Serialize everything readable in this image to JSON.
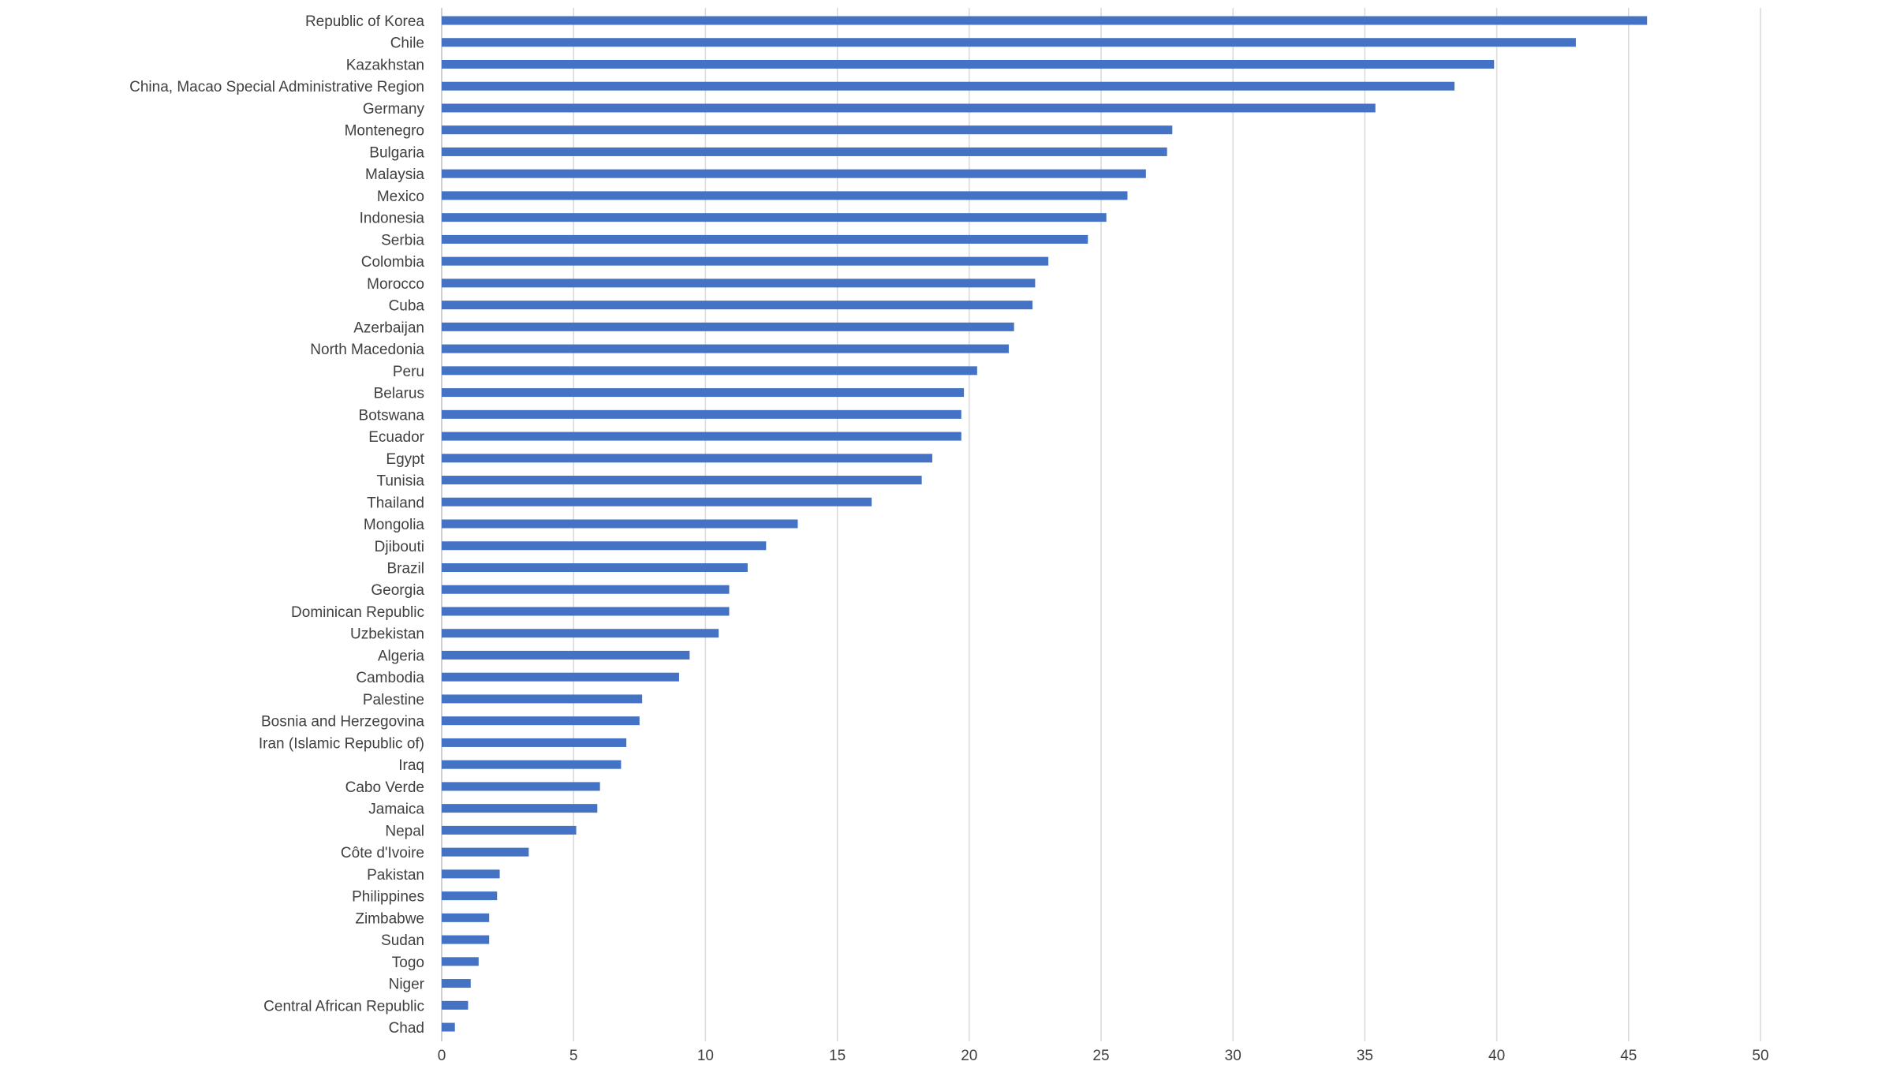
{
  "chart_data": {
    "type": "bar",
    "orientation": "horizontal",
    "title": "",
    "xlabel": "",
    "ylabel": "",
    "xlim": [
      0,
      50
    ],
    "x_ticks": [
      0,
      5,
      10,
      15,
      20,
      25,
      30,
      35,
      40,
      45,
      50
    ],
    "grid": "vertical",
    "legend": "none",
    "bar_color": "#4472C4",
    "grid_color": "#D9D9D9",
    "axis_color": "#BFBFBF",
    "text_color": "#404040",
    "categories": [
      "Republic of Korea",
      "Chile",
      "Kazakhstan",
      "China, Macao Special Administrative Region",
      "Germany",
      "Montenegro",
      "Bulgaria",
      "Malaysia",
      "Mexico",
      "Indonesia",
      "Serbia",
      "Colombia",
      "Morocco",
      "Cuba",
      "Azerbaijan",
      "North Macedonia",
      "Peru",
      "Belarus",
      "Botswana",
      "Ecuador",
      "Egypt",
      "Tunisia",
      "Thailand",
      "Mongolia",
      "Djibouti",
      "Brazil",
      "Georgia",
      "Dominican Republic",
      "Uzbekistan",
      "Algeria",
      "Cambodia",
      "Palestine",
      "Bosnia and Herzegovina",
      "Iran (Islamic Republic of)",
      "Iraq",
      "Cabo Verde",
      "Jamaica",
      "Nepal",
      "Côte d'Ivoire",
      "Pakistan",
      "Philippines",
      "Zimbabwe",
      "Sudan",
      "Togo",
      "Niger",
      "Central African Republic",
      "Chad"
    ],
    "values": [
      45.7,
      43.0,
      39.9,
      38.4,
      35.4,
      27.7,
      27.5,
      26.7,
      26.0,
      25.2,
      24.5,
      23.0,
      22.5,
      22.4,
      21.7,
      21.5,
      20.3,
      19.8,
      19.7,
      19.7,
      18.6,
      18.2,
      16.3,
      13.5,
      12.3,
      11.6,
      10.9,
      10.9,
      10.5,
      9.4,
      9.0,
      7.6,
      7.5,
      7.0,
      6.8,
      6.0,
      5.9,
      5.1,
      3.3,
      2.2,
      2.1,
      1.8,
      1.8,
      1.4,
      1.1,
      1.0,
      0.5
    ]
  }
}
